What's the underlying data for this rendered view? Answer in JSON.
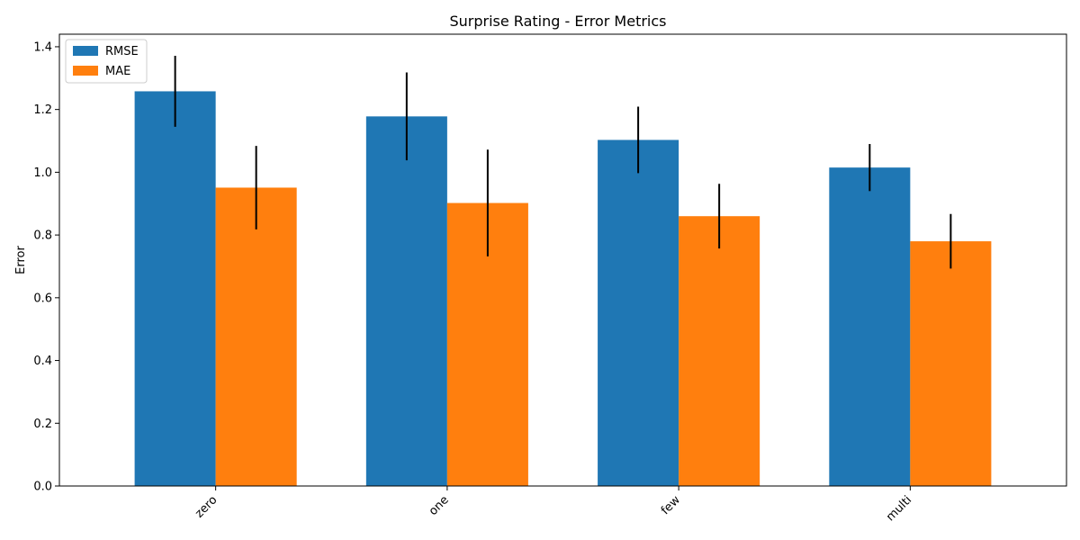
{
  "chart_data": {
    "type": "bar",
    "title": "Surprise Rating - Error Metrics",
    "xlabel": "",
    "ylabel": "Error",
    "categories": [
      "zero",
      "one",
      "few",
      "multi"
    ],
    "ylim": [
      0,
      1.44
    ],
    "yticks": [
      0.0,
      0.2,
      0.4,
      0.6,
      0.8,
      1.0,
      1.2,
      1.4
    ],
    "series": [
      {
        "name": "RMSE",
        "color": "#1f77b4",
        "values": [
          1.258,
          1.178,
          1.103,
          1.015
        ],
        "errors": [
          0.113,
          0.14,
          0.106,
          0.075
        ]
      },
      {
        "name": "MAE",
        "color": "#ff7f0e",
        "values": [
          0.951,
          0.902,
          0.86,
          0.78
        ],
        "errors": [
          0.133,
          0.17,
          0.103,
          0.087
        ]
      }
    ],
    "legend_position": "top-left",
    "grid": false
  }
}
